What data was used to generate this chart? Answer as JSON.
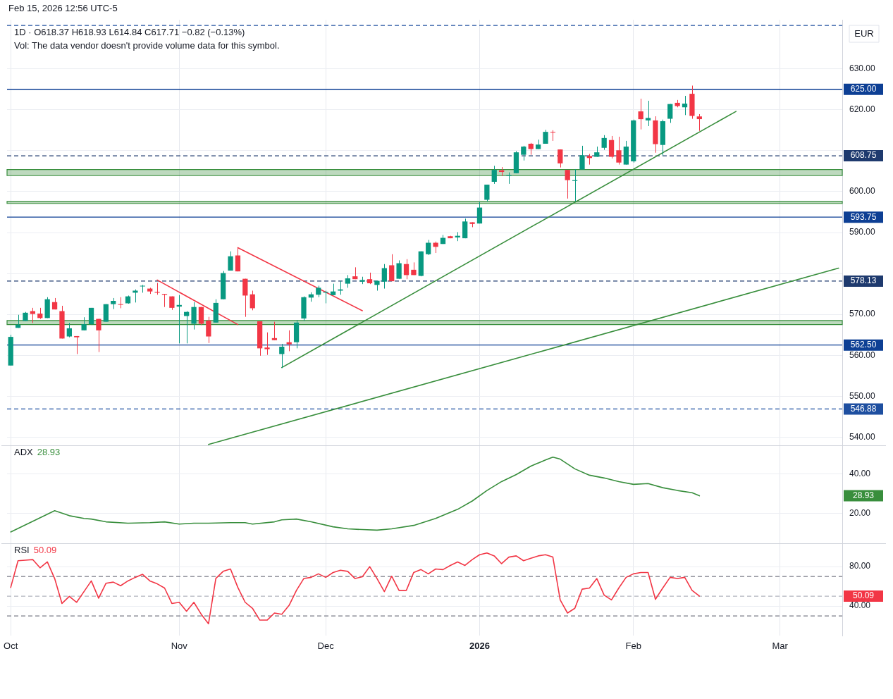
{
  "chart_data": [
    {
      "type": "candlestick",
      "title": "1D · O618.37 H618.93 L614.84 C617.71 −0.82 (−0.13%)",
      "ylabel": "EUR",
      "annotations": [
        "Feb 15, 2026 12:56 UTC-5",
        "Vol: The data vendor doesn't provide volume data for this symbol."
      ],
      "categories": [
        null,
        null,
        null,
        null,
        null,
        null,
        null,
        null,
        null,
        null,
        null,
        null,
        null,
        null,
        null,
        null,
        null,
        null,
        null,
        null,
        null,
        null,
        null,
        null,
        null,
        null,
        null,
        null,
        null,
        null,
        null,
        null,
        null,
        null,
        null,
        null,
        null,
        null,
        null,
        null,
        null,
        null,
        null,
        null,
        null,
        null,
        null,
        null,
        null,
        null,
        null,
        null,
        null,
        null,
        null,
        null,
        null,
        null,
        null,
        null,
        null,
        null,
        null,
        null,
        null,
        null,
        null,
        null,
        null,
        null,
        null,
        null,
        null,
        null,
        null,
        null,
        null,
        null,
        null,
        null,
        null,
        null,
        null,
        null,
        null,
        null,
        null,
        null,
        null,
        null,
        null,
        null,
        null,
        null,
        null,
        null,
        null,
        null,
        null,
        null,
        null,
        null,
        null,
        null,
        null,
        null,
        null,
        null,
        null,
        null,
        null,
        null,
        null,
        null
      ],
      "ohlc": [
        [
          557.5,
          565.0,
          557.5,
          564.5
        ],
        [
          566.7,
          569.9,
          566.7,
          567.5
        ],
        [
          568.4,
          570.6,
          568.4,
          570.4
        ],
        [
          570.8,
          571.6,
          567.9,
          570.1
        ],
        [
          570.2,
          571.6,
          568.9,
          569.1
        ],
        [
          569.1,
          574.2,
          569.1,
          573.7
        ],
        [
          573.0,
          574.0,
          571.2,
          571.2
        ],
        [
          570.8,
          572.1,
          564.1,
          564.1
        ],
        [
          564.6,
          567.9,
          564.4,
          566.6
        ],
        [
          564.7,
          564.7,
          560.3,
          564.4
        ],
        [
          566.1,
          569.3,
          566.1,
          567.6
        ],
        [
          567.6,
          571.6,
          567.4,
          571.6
        ],
        [
          568.9,
          568.9,
          560.8,
          566.1
        ],
        [
          568.2,
          572.5,
          568.2,
          572.5
        ],
        [
          572.5,
          574.0,
          571.3,
          573.3
        ],
        [
          572.5,
          574.2,
          571.5,
          572.4
        ],
        [
          572.7,
          574.6,
          572.6,
          574.4
        ],
        [
          575.3,
          576.1,
          572.9,
          575.8
        ],
        [
          576.9,
          577.2,
          575.3,
          577.0
        ],
        [
          576.3,
          576.5,
          575.0,
          575.6
        ],
        [
          575.5,
          577.7,
          574.8,
          575.3
        ],
        [
          575.0,
          575.0,
          571.8,
          574.8
        ],
        [
          574.4,
          574.4,
          571.1,
          571.6
        ],
        [
          571.9,
          574.7,
          562.9,
          572.3
        ],
        [
          569.6,
          570.8,
          562.9,
          570.6
        ],
        [
          567.7,
          573.0,
          566.3,
          571.8
        ],
        [
          571.8,
          571.8,
          567.4,
          567.7
        ],
        [
          568.5,
          569.4,
          563.0,
          564.6
        ],
        [
          568.0,
          573.7,
          568.0,
          572.8
        ],
        [
          573.7,
          580.6,
          573.7,
          580.1
        ],
        [
          580.7,
          585.4,
          580.7,
          584.2
        ],
        [
          584.4,
          586.4,
          580.5,
          580.5
        ],
        [
          578.7,
          578.7,
          569.4,
          574.6
        ],
        [
          574.9,
          575.8,
          571.0,
          571.5
        ],
        [
          568.3,
          568.3,
          559.9,
          561.7
        ],
        [
          561.9,
          565.6,
          560.1,
          561.5
        ],
        [
          564.2,
          568.2,
          563.7,
          563.7
        ],
        [
          560.3,
          562.8,
          556.9,
          562.1
        ],
        [
          563.2,
          566.1,
          561.0,
          562.7
        ],
        [
          563.2,
          568.6,
          561.7,
          568.0
        ],
        [
          569.0,
          574.4,
          568.4,
          574.2
        ],
        [
          574.1,
          575.4,
          573.1,
          574.9
        ],
        [
          574.8,
          577.0,
          574.2,
          576.5
        ],
        [
          575.3,
          575.8,
          572.7,
          575.5
        ],
        [
          574.7,
          577.5,
          574.7,
          575.6
        ],
        [
          575.8,
          578.2,
          574.8,
          576.1
        ],
        [
          577.5,
          579.6,
          576.5,
          578.8
        ],
        [
          579.3,
          581.5,
          578.6,
          578.6
        ],
        [
          578.0,
          579.2,
          577.4,
          578.4
        ],
        [
          578.6,
          580.2,
          577.4,
          577.6
        ],
        [
          577.2,
          578.2,
          575.8,
          578.2
        ],
        [
          578.0,
          582.3,
          576.3,
          581.3
        ],
        [
          582.0,
          584.7,
          578.1,
          578.1
        ],
        [
          578.7,
          583.2,
          578.7,
          582.5
        ],
        [
          582.3,
          583.5,
          578.6,
          579.6
        ],
        [
          580.9,
          582.7,
          579.6,
          579.6
        ],
        [
          579.4,
          585.4,
          579.3,
          585.4
        ],
        [
          584.7,
          588.2,
          584.5,
          587.5
        ],
        [
          587.5,
          587.8,
          585.0,
          586.5
        ],
        [
          587.2,
          589.4,
          587.2,
          588.7
        ],
        [
          589.1,
          589.2,
          588.6,
          588.6
        ],
        [
          588.8,
          590.1,
          587.9,
          589.2
        ],
        [
          588.6,
          593.4,
          588.6,
          592.7
        ],
        [
          592.5,
          592.5,
          591.3,
          592.1
        ],
        [
          592.2,
          597.4,
          592.2,
          596.1
        ],
        [
          598.0,
          601.7,
          597.6,
          601.7
        ],
        [
          602.4,
          606.3,
          601.9,
          605.3
        ],
        [
          605.2,
          606.0,
          603.8,
          604.8
        ],
        [
          603.8,
          604.7,
          601.9,
          604.0
        ],
        [
          604.5,
          609.9,
          604.5,
          609.6
        ],
        [
          609.0,
          611.2,
          607.6,
          611.0
        ],
        [
          611.7,
          611.9,
          609.0,
          610.4
        ],
        [
          610.4,
          612.7,
          610.4,
          611.5
        ],
        [
          611.7,
          615.1,
          611.7,
          614.6
        ],
        [
          614.6,
          615.0,
          612.4,
          614.5
        ],
        [
          610.3,
          610.3,
          605.9,
          606.9
        ],
        [
          605.3,
          605.3,
          598.3,
          602.8
        ],
        [
          602.6,
          605.5,
          597.6,
          602.8
        ],
        [
          605.4,
          611.2,
          605.4,
          608.9
        ],
        [
          608.7,
          609.2,
          606.6,
          608.2
        ],
        [
          608.5,
          611.0,
          608.5,
          609.6
        ],
        [
          610.7,
          613.8,
          610.2,
          613.1
        ],
        [
          612.6,
          613.6,
          608.1,
          608.5
        ],
        [
          610.1,
          613.4,
          606.6,
          607.1
        ],
        [
          606.6,
          612.4,
          606.6,
          611.0
        ],
        [
          607.4,
          617.6,
          607.1,
          617.4
        ],
        [
          619.6,
          622.7,
          615.2,
          617.7
        ],
        [
          617.4,
          622.2,
          616.0,
          618.0
        ],
        [
          617.4,
          618.4,
          609.5,
          611.6
        ],
        [
          611.4,
          617.6,
          608.8,
          617.2
        ],
        [
          617.8,
          621.4,
          616.8,
          621.4
        ],
        [
          621.7,
          622.4,
          620.6,
          620.9
        ],
        [
          620.6,
          623.4,
          618.7,
          621.5
        ],
        [
          623.9,
          625.9,
          617.8,
          618.5
        ],
        [
          618.37,
          618.93,
          614.84,
          617.71
        ],
        null,
        null,
        null,
        null,
        null,
        null,
        null,
        null,
        null,
        null,
        null,
        null,
        null,
        null,
        null,
        null,
        null,
        null,
        null
      ],
      "series": [
        {
          "type": "line",
          "color": "#388e3c",
          "values": [
            null,
            null,
            null,
            null,
            null,
            null,
            null,
            null,
            null,
            null,
            null,
            null,
            null,
            null,
            null,
            null,
            null,
            null,
            null,
            null,
            null,
            null,
            null,
            null,
            null,
            null,
            null,
            null,
            null,
            null,
            null,
            null,
            null,
            null,
            null,
            null,
            null,
            557.0,
            null,
            null,
            null,
            null,
            null,
            null,
            null,
            null,
            null,
            null,
            null,
            null,
            null,
            null,
            null,
            null,
            null,
            null,
            null,
            null,
            null,
            null,
            null,
            null,
            null,
            null,
            null,
            null,
            null,
            null,
            null,
            null,
            null,
            null,
            null,
            null,
            null,
            null,
            null,
            null,
            null,
            null,
            null,
            null,
            null,
            null,
            null,
            null,
            null,
            null,
            null,
            null,
            null,
            null,
            null,
            null,
            null,
            null,
            null,
            null,
            null,
            619.6,
            null,
            null,
            null,
            null,
            null,
            null,
            null,
            null,
            null,
            null,
            null,
            null,
            null,
            null
          ]
        },
        {
          "type": "line",
          "color": "#388e3c",
          "values": [
            null,
            null,
            null,
            null,
            null,
            null,
            null,
            null,
            null,
            null,
            null,
            null,
            null,
            null,
            null,
            null,
            null,
            null,
            null,
            null,
            null,
            null,
            null,
            null,
            null,
            null,
            null,
            538.2,
            null,
            null,
            null,
            null,
            null,
            null,
            null,
            null,
            null,
            null,
            null,
            null,
            null,
            null,
            null,
            null,
            null,
            null,
            null,
            null,
            null,
            null,
            null,
            null,
            null,
            null,
            null,
            null,
            null,
            null,
            null,
            null,
            null,
            null,
            null,
            null,
            null,
            null,
            null,
            null,
            null,
            null,
            null,
            null,
            null,
            null,
            null,
            null,
            null,
            null,
            null,
            null,
            null,
            null,
            null,
            null,
            null,
            null,
            null,
            null,
            null,
            null,
            null,
            null,
            null,
            null,
            null,
            null,
            null,
            null,
            null,
            null,
            null,
            null,
            null,
            null,
            null,
            null,
            null,
            null,
            null,
            null,
            null,
            null,
            null,
            581.3
          ]
        },
        {
          "type": "line",
          "color": "#f23645",
          "values": [
            null,
            null,
            null,
            null,
            null,
            null,
            null,
            null,
            null,
            null,
            null,
            null,
            null,
            null,
            null,
            null,
            null,
            null,
            null,
            null,
            578.4,
            null,
            null,
            null,
            null,
            null,
            null,
            null,
            null,
            null,
            null,
            567.5,
            null,
            null,
            null,
            null,
            null,
            null,
            null,
            null,
            null,
            null,
            null,
            null,
            null,
            null,
            null,
            null,
            null,
            null,
            null,
            null,
            null,
            null,
            null,
            null,
            null,
            null,
            null,
            null,
            null,
            null,
            null,
            null,
            null,
            null,
            null,
            null,
            null,
            null,
            null,
            null,
            null,
            null,
            null,
            null,
            null,
            null,
            null,
            null,
            null,
            null,
            null,
            null,
            null,
            null,
            null,
            null,
            null,
            null,
            null,
            null,
            null,
            null,
            null,
            null,
            null,
            null,
            null,
            null,
            null,
            null,
            null,
            null,
            null,
            null,
            null,
            null,
            null,
            null,
            null,
            null,
            null,
            null
          ]
        },
        {
          "type": "line",
          "color": "#f23645",
          "values": [
            null,
            null,
            null,
            null,
            null,
            null,
            null,
            null,
            null,
            null,
            null,
            null,
            null,
            null,
            null,
            null,
            null,
            null,
            null,
            null,
            null,
            null,
            null,
            null,
            null,
            null,
            null,
            null,
            null,
            null,
            null,
            586.3,
            null,
            null,
            null,
            null,
            null,
            null,
            null,
            null,
            null,
            null,
            null,
            null,
            null,
            null,
            null,
            null,
            570.9,
            null,
            null,
            null,
            null,
            null,
            null,
            null,
            null,
            null,
            null,
            null,
            null,
            null,
            null,
            null,
            null,
            null,
            null,
            null,
            null,
            null,
            null,
            null,
            null,
            null,
            null,
            null,
            null,
            null,
            null,
            null,
            null,
            null,
            null,
            null,
            null,
            null,
            null,
            null,
            null,
            null,
            null,
            null,
            null,
            null,
            null,
            null,
            null,
            null,
            null,
            null,
            null,
            null,
            null,
            null,
            null,
            null,
            null,
            null,
            null,
            null,
            null,
            null,
            null,
            null
          ]
        }
      ],
      "ref_lines": [
        {
          "axis": "y",
          "value": 640.6,
          "label": null,
          "color": "#1e4fa0",
          "line_style": "dashed"
        },
        {
          "axis": "y",
          "value": 625.0,
          "label": "625.00",
          "color": "#0d3f94",
          "line_style": "solid"
        },
        {
          "axis": "y",
          "value": 608.75,
          "label": "608.75",
          "color": "#1e3a6e",
          "line_style": "dashed"
        },
        {
          "axis": "y",
          "value": 593.75,
          "label": "593.75",
          "color": "#0d3f94",
          "line_style": "solid"
        },
        {
          "axis": "y",
          "value": 578.13,
          "label": "578.13",
          "color": "#1e3a6e",
          "line_style": "dashed"
        },
        {
          "axis": "y",
          "value": 562.5,
          "label": "562.50",
          "color": "#0d3f94",
          "line_style": "solid"
        },
        {
          "axis": "y",
          "value": 546.88,
          "label": "546.88",
          "color": "#1e4fa0",
          "line_style": "dashed"
        }
      ],
      "bands": [
        {
          "axis": "y",
          "from": 603.9,
          "to": 605.4,
          "color": "#388e3c"
        },
        {
          "axis": "y",
          "from": 597.1,
          "to": 597.6,
          "color": "#388e3c"
        },
        {
          "axis": "y",
          "from": 567.5,
          "to": 568.5,
          "color": "#388e3c"
        }
      ],
      "ylim": [
        538,
        642
      ],
      "yticks": [
        {
          "value": 540,
          "label": "540.00"
        },
        {
          "value": 550,
          "label": "550.00"
        },
        {
          "value": 560,
          "label": "560.00"
        },
        {
          "value": 570,
          "label": "570.00"
        },
        {
          "value": 580,
          "label": null
        },
        {
          "value": 590,
          "label": "590.00"
        },
        {
          "value": 600,
          "label": "600.00"
        },
        {
          "value": 610,
          "label": null
        },
        {
          "value": 620,
          "label": "620.00"
        },
        {
          "value": 630,
          "label": "630.00"
        }
      ],
      "grid": true,
      "tick_labels": "y"
    },
    {
      "type": "line",
      "legend": "top left",
      "annotations": [
        "28.93",
        "28.93"
      ],
      "categories": [
        null,
        null,
        null,
        null,
        null,
        null,
        null,
        null,
        null,
        null,
        null,
        null,
        null,
        null,
        null,
        null,
        null,
        null,
        null,
        null,
        null,
        null,
        null,
        null,
        null,
        null,
        null,
        null,
        null,
        null,
        null,
        null,
        null,
        null,
        null,
        null,
        null,
        null,
        null,
        null,
        null,
        null,
        null,
        null,
        null,
        null,
        null,
        null,
        null,
        null,
        null,
        null,
        null,
        null,
        null,
        null,
        null,
        null,
        null,
        null,
        null,
        null,
        null,
        null,
        null,
        null,
        null,
        null,
        null,
        null,
        null,
        null,
        null,
        null,
        null,
        null,
        null,
        null,
        null,
        null,
        null,
        null,
        null,
        null,
        null,
        null,
        null,
        null,
        null,
        null,
        null,
        null,
        null,
        null,
        null,
        null,
        null,
        null,
        null,
        null,
        null,
        null,
        null,
        null,
        null,
        null,
        null,
        null,
        null,
        null,
        null,
        null,
        null,
        null
      ],
      "series": [
        {
          "name": "ADX",
          "type": "line",
          "color": "#388e3c",
          "values": [
            10.7,
            null,
            null,
            null,
            null,
            null,
            21.4,
            null,
            18.9,
            null,
            17.5,
            17.2,
            null,
            15.8,
            null,
            null,
            15.1,
            null,
            null,
            15.4,
            null,
            15.8,
            null,
            14.7,
            null,
            15.1,
            null,
            15.1,
            null,
            null,
            15.4,
            null,
            15.4,
            14.7,
            null,
            null,
            15.8,
            16.8,
            null,
            17.2,
            null,
            15.8,
            null,
            null,
            13.3,
            null,
            12.3,
            null,
            11.9,
            null,
            11.6,
            null,
            12.3,
            null,
            null,
            14.0,
            null,
            null,
            17.5,
            null,
            null,
            22.1,
            null,
            26.3,
            null,
            31.6,
            null,
            36.1,
            null,
            39.6,
            null,
            43.9,
            null,
            47.0,
            48.4,
            47.4,
            null,
            42.5,
            null,
            39.3,
            null,
            37.9,
            null,
            36.1,
            null,
            34.7,
            null,
            35.1,
            null,
            33.0,
            null,
            31.6,
            null,
            30.5,
            28.93,
            null,
            null,
            null,
            null,
            null,
            null,
            null,
            null,
            null,
            null,
            null,
            null,
            null,
            null,
            null,
            null,
            null,
            null,
            null
          ]
        }
      ],
      "ylim": [
        5,
        54
      ],
      "yticks": [
        {
          "value": 20,
          "label": "20.00"
        },
        {
          "value": 40,
          "label": "40.00"
        }
      ],
      "grid": true,
      "tick_labels": "y"
    },
    {
      "type": "line",
      "legend": "top left",
      "annotations": [
        "50.09",
        "50.09"
      ],
      "categories": [
        "Oct",
        null,
        null,
        null,
        null,
        null,
        null,
        null,
        null,
        null,
        null,
        null,
        null,
        null,
        null,
        null,
        null,
        null,
        null,
        null,
        null,
        null,
        null,
        "Nov",
        null,
        null,
        null,
        null,
        null,
        null,
        null,
        null,
        null,
        null,
        null,
        null,
        null,
        null,
        null,
        null,
        null,
        null,
        null,
        "Dec",
        null,
        null,
        null,
        null,
        null,
        null,
        null,
        null,
        null,
        null,
        null,
        null,
        null,
        null,
        null,
        null,
        null,
        null,
        null,
        null,
        "2026",
        null,
        null,
        null,
        null,
        null,
        null,
        null,
        null,
        null,
        null,
        null,
        null,
        null,
        null,
        null,
        null,
        null,
        null,
        null,
        null,
        "Feb",
        null,
        null,
        null,
        null,
        null,
        null,
        null,
        null,
        null,
        null,
        null,
        null,
        null,
        null,
        null,
        null,
        null,
        null,
        null,
        "Mar",
        null,
        null,
        null,
        null,
        null,
        null,
        null,
        null
      ],
      "series": [
        {
          "name": "RSI",
          "type": "line",
          "color": "#f23645",
          "values": [
            58.9,
            86.0,
            86.6,
            87.2,
            78.8,
            84.8,
            67.9,
            42.6,
            49.8,
            43.8,
            54.6,
            65.5,
            48.0,
            63.1,
            64.3,
            60.6,
            65.5,
            69.1,
            72.2,
            65.5,
            62.5,
            58.3,
            42.6,
            43.8,
            34.7,
            43.8,
            31.7,
            22.0,
            68.0,
            75.2,
            77.6,
            58.9,
            43.8,
            37.7,
            25.7,
            25.7,
            32.9,
            31.7,
            40.7,
            55.9,
            67.9,
            69.1,
            72.7,
            69.1,
            74.0,
            76.4,
            75.2,
            67.9,
            69.7,
            80.0,
            67.9,
            54.6,
            70.3,
            55.9,
            55.9,
            74.0,
            77.0,
            72.7,
            77.6,
            77.0,
            81.2,
            84.8,
            81.2,
            87.2,
            92.1,
            93.9,
            90.9,
            83.0,
            89.7,
            90.9,
            86.0,
            88.5,
            90.9,
            92.1,
            89.7,
            46.2,
            32.9,
            37.7,
            57.1,
            58.3,
            67.9,
            51.0,
            46.2,
            58.3,
            69.1,
            72.7,
            74.0,
            74.0,
            46.8,
            58.3,
            69.1,
            67.9,
            69.1,
            55.9,
            50.09,
            null,
            null,
            null,
            null,
            null,
            null,
            null,
            null,
            null,
            null,
            null,
            null,
            null,
            null,
            null,
            null,
            null,
            null,
            null
          ]
        }
      ],
      "ref_lines": [
        {
          "axis": "y",
          "value": 70,
          "label": null,
          "color": "#787b86",
          "line_style": "dashed"
        },
        {
          "axis": "y",
          "value": 50,
          "label": null,
          "color": "#b2b5be",
          "line_style": "dashed"
        },
        {
          "axis": "y",
          "value": 30,
          "label": null,
          "color": "#787b86",
          "line_style": "dashed"
        }
      ],
      "ylim": [
        10,
        103
      ],
      "yticks": [
        {
          "value": 40,
          "label": "40.00"
        },
        {
          "value": 80,
          "label": "80.00"
        }
      ],
      "grid": true
    }
  ]
}
